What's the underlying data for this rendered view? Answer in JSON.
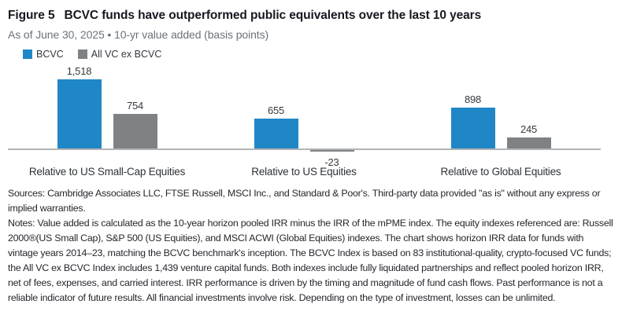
{
  "header": {
    "figure_label": "Figure 5",
    "title": "BCVC funds have outperformed public equivalents over the last 10 years",
    "subtitle": "As of June 30, 2025 • 10-yr value added (basis points)"
  },
  "chart_data": {
    "type": "bar",
    "title": "BCVC funds have outperformed public equivalents over the last 10 years",
    "subtitle": "As of June 30, 2025 • 10-yr value added (basis points)",
    "categories": [
      "Relative to US Small-Cap Equities",
      "Relative to US Equities",
      "Relative to Global Equities"
    ],
    "series": [
      {
        "name": "BCVC",
        "color": "#2087C6",
        "values": [
          1518,
          655,
          898
        ],
        "labels": [
          "1,518",
          "655",
          "898"
        ]
      },
      {
        "name": "All VC ex BCVC",
        "color": "#7F8285",
        "values": [
          754,
          -23,
          245
        ],
        "labels": [
          "754",
          "-23",
          "245"
        ]
      }
    ],
    "xlabel": "",
    "ylabel": "10-yr value added (basis points)",
    "ylim": [
      -100,
      1600
    ],
    "grid": false,
    "legend_position": "top-left",
    "value_labels_shown": true,
    "axis_line_color": "#b1b4b7"
  },
  "footnotes": {
    "sources": "Sources: Cambridge Associates LLC, FTSE Russell, MSCI Inc., and Standard & Poor's. Third-party data provided \"as is\" without any express or implied warranties.",
    "notes": "Notes: Value added is calculated as the 10-year horizon pooled IRR minus the IRR of the mPME index. The equity indexes referenced are: Russell 2000®(US Small Cap), S&P 500 (US Equities), and MSCI ACWI (Global Equities) indexes. The chart shows horizon IRR data for funds with vintage years 2014–23, matching the BCVC benchmark's inception. The BCVC Index is based on 83 institutional-quality, crypto-focused VC funds; the All VC ex BCVC Index includes 1,439 venture capital funds. Both indexes include fully liquidated partnerships and reflect pooled horizon IRR, net of fees, expenses, and carried interest. IRR performance is driven by the timing and magnitude of fund cash flows. Past performance is not a reliable indicator of future results. All financial investments involve risk. Depending on the type of investment, losses can be unlimited."
  }
}
